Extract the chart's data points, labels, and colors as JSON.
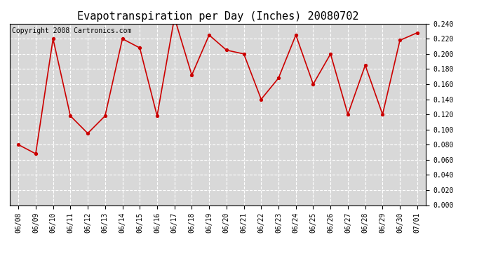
{
  "title": "Evapotranspiration per Day (Inches) 20080702",
  "copyright_text": "Copyright 2008 Cartronics.com",
  "x_labels": [
    "06/08",
    "06/09",
    "06/10",
    "06/11",
    "06/12",
    "06/13",
    "06/14",
    "06/15",
    "06/16",
    "06/17",
    "06/18",
    "06/19",
    "06/20",
    "06/21",
    "06/22",
    "06/23",
    "06/24",
    "06/25",
    "06/26",
    "06/27",
    "06/28",
    "06/29",
    "06/30",
    "07/01"
  ],
  "y_values": [
    0.08,
    0.068,
    0.22,
    0.118,
    0.095,
    0.118,
    0.22,
    0.208,
    0.118,
    0.248,
    0.172,
    0.225,
    0.205,
    0.2,
    0.14,
    0.168,
    0.225,
    0.16,
    0.2,
    0.12,
    0.185,
    0.12,
    0.218,
    0.228
  ],
  "line_color": "#cc0000",
  "marker_color": "#cc0000",
  "marker": "o",
  "marker_size": 3,
  "line_width": 1.2,
  "ylim": [
    0.0,
    0.24
  ],
  "ytick_step": 0.02,
  "plot_bg_color": "#d8d8d8",
  "outer_bg_color": "#ffffff",
  "grid_color": "#ffffff",
  "title_fontsize": 11,
  "tick_fontsize": 7,
  "copyright_fontsize": 7
}
